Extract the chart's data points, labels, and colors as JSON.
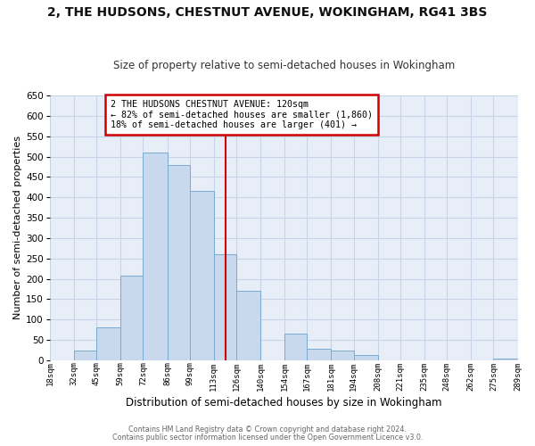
{
  "title": "2, THE HUDSONS, CHESTNUT AVENUE, WOKINGHAM, RG41 3BS",
  "subtitle": "Size of property relative to semi-detached houses in Wokingham",
  "xlabel": "Distribution of semi-detached houses by size in Wokingham",
  "ylabel": "Number of semi-detached properties",
  "bar_color": "#c8d8ed",
  "bar_edge_color": "#7aaad0",
  "grid_color": "#c8d4e8",
  "plot_bg_color": "#e8eef8",
  "figure_bg_color": "#ffffff",
  "vline_x": 120,
  "vline_color": "#cc0000",
  "annotation_box_edge": "#cc0000",
  "annotation_line1": "2 THE HUDSONS CHESTNUT AVENUE: 120sqm",
  "annotation_line2": "← 82% of semi-detached houses are smaller (1,860)",
  "annotation_line3": "18% of semi-detached houses are larger (401) →",
  "bin_edges": [
    18,
    32,
    45,
    59,
    72,
    86,
    99,
    113,
    126,
    140,
    154,
    167,
    181,
    194,
    208,
    221,
    235,
    248,
    262,
    275,
    289
  ],
  "bin_labels": [
    "18sqm",
    "32sqm",
    "45sqm",
    "59sqm",
    "72sqm",
    "86sqm",
    "99sqm",
    "113sqm",
    "126sqm",
    "140sqm",
    "154sqm",
    "167sqm",
    "181sqm",
    "194sqm",
    "208sqm",
    "221sqm",
    "235sqm",
    "248sqm",
    "262sqm",
    "275sqm",
    "289sqm"
  ],
  "heights": [
    0,
    23,
    80,
    207,
    510,
    480,
    415,
    260,
    170,
    0,
    65,
    28,
    23,
    13,
    0,
    0,
    0,
    0,
    0,
    5
  ],
  "ylim": [
    0,
    650
  ],
  "yticks": [
    0,
    50,
    100,
    150,
    200,
    250,
    300,
    350,
    400,
    450,
    500,
    550,
    600,
    650
  ],
  "footer1": "Contains HM Land Registry data © Crown copyright and database right 2024.",
  "footer2": "Contains public sector information licensed under the Open Government Licence v3.0."
}
